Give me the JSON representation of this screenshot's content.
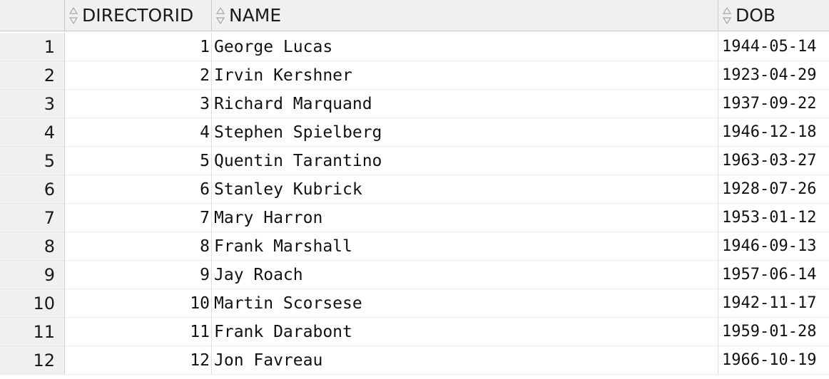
{
  "columns": [
    {
      "key": "directorid",
      "label": "DIRECTORID",
      "sort_icon": "sort-arrows-icon"
    },
    {
      "key": "name",
      "label": "NAME",
      "sort_icon": "sort-arrows-icon"
    },
    {
      "key": "dob",
      "label": "DOB",
      "sort_icon": "sort-arrows-icon"
    }
  ],
  "rows": [
    {
      "num": "1",
      "directorid": "1",
      "name": "George Lucas",
      "dob": "1944-05-14"
    },
    {
      "num": "2",
      "directorid": "2",
      "name": "Irvin Kershner",
      "dob": "1923-04-29"
    },
    {
      "num": "3",
      "directorid": "3",
      "name": "Richard Marquand",
      "dob": "1937-09-22"
    },
    {
      "num": "4",
      "directorid": "4",
      "name": "Stephen Spielberg",
      "dob": "1946-12-18"
    },
    {
      "num": "5",
      "directorid": "5",
      "name": "Quentin Tarantino",
      "dob": "1963-03-27"
    },
    {
      "num": "6",
      "directorid": "6",
      "name": "Stanley Kubrick",
      "dob": "1928-07-26"
    },
    {
      "num": "7",
      "directorid": "7",
      "name": "Mary Harron",
      "dob": "1953-01-12"
    },
    {
      "num": "8",
      "directorid": "8",
      "name": "Frank Marshall",
      "dob": "1946-09-13"
    },
    {
      "num": "9",
      "directorid": "9",
      "name": "Jay Roach",
      "dob": "1957-06-14"
    },
    {
      "num": "10",
      "directorid": "10",
      "name": "Martin Scorsese",
      "dob": "1942-11-17"
    },
    {
      "num": "11",
      "directorid": "11",
      "name": "Frank Darabont",
      "dob": "1959-01-28"
    },
    {
      "num": "12",
      "directorid": "12",
      "name": "Jon Favreau",
      "dob": "1966-10-19"
    }
  ]
}
